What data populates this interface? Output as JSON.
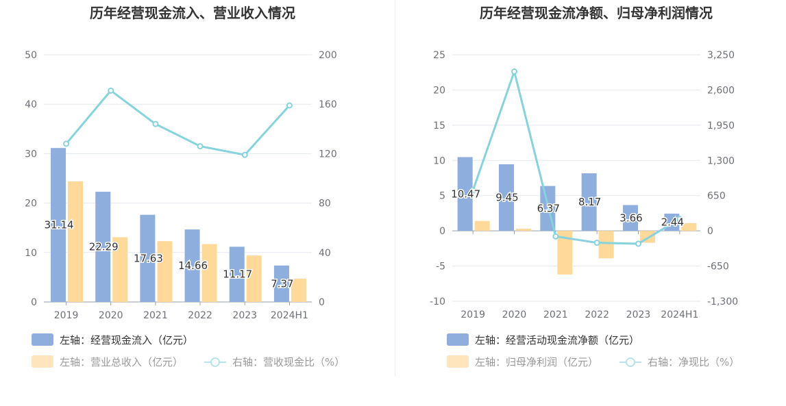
{
  "chart_data": [
    {
      "type": "bar",
      "title": "历年经营现金流入、营业收入情况",
      "categories": [
        "2019",
        "2020",
        "2021",
        "2022",
        "2023",
        "2024H1"
      ],
      "left_axis": {
        "min": 0,
        "max": 50,
        "step": 10,
        "ticks": [
          "0",
          "10",
          "20",
          "30",
          "40",
          "50"
        ]
      },
      "right_axis": {
        "min": 0,
        "max": 200,
        "step": 40,
        "ticks": [
          "0",
          "40",
          "80",
          "120",
          "160",
          "200"
        ]
      },
      "series": [
        {
          "name": "左轴：经营现金流入（亿元）",
          "kind": "bar",
          "axis": "left",
          "color": "#8eaedd",
          "values": [
            31.14,
            22.29,
            17.63,
            14.66,
            11.17,
            7.37
          ],
          "labels": [
            "31.14",
            "22.29",
            "17.63",
            "14.66",
            "11.17",
            "7.37"
          ]
        },
        {
          "name": "左轴：营业总收入（亿元）",
          "kind": "bar",
          "axis": "left",
          "color": "#ffd99a",
          "values": [
            24.4,
            13.1,
            12.3,
            11.7,
            9.4,
            4.7
          ]
        },
        {
          "name": "右轴：营收现金比（%）",
          "kind": "line",
          "axis": "right",
          "color": "#86d3dd",
          "values": [
            128,
            171,
            144,
            126,
            119,
            159
          ]
        }
      ]
    },
    {
      "type": "bar",
      "title": "历年经营现金流净额、归母净利润情况",
      "categories": [
        "2019",
        "2020",
        "2021",
        "2022",
        "2023",
        "2024H1"
      ],
      "left_axis": {
        "min": -10,
        "max": 25,
        "step": 5,
        "ticks": [
          "-10",
          "-5",
          "0",
          "5",
          "10",
          "15",
          "20",
          "25"
        ]
      },
      "right_axis": {
        "min": -1300,
        "max": 3250,
        "step": 650,
        "ticks": [
          "-1,300",
          "-650",
          "0",
          "650",
          "1,300",
          "1,950",
          "2,600",
          "3,250"
        ]
      },
      "series": [
        {
          "name": "左轴：经营活动现金流净额（亿元）",
          "kind": "bar",
          "axis": "left",
          "color": "#8eaedd",
          "values": [
            10.47,
            9.45,
            6.37,
            8.17,
            3.66,
            2.44
          ],
          "labels": [
            "10.47",
            "9.45",
            "6.37",
            "8.17",
            "3.66",
            "2.44"
          ]
        },
        {
          "name": "左轴：归母净利润（亿元）",
          "kind": "bar",
          "axis": "left",
          "color": "#ffd99a",
          "values": [
            1.4,
            0.3,
            -6.2,
            -3.9,
            -1.7,
            1.1
          ]
        },
        {
          "name": "右轴：净现比（%）",
          "kind": "line",
          "axis": "right",
          "color": "#86d3dd",
          "values": [
            748,
            2940,
            -103,
            -220,
            -238,
            220
          ]
        }
      ]
    }
  ]
}
